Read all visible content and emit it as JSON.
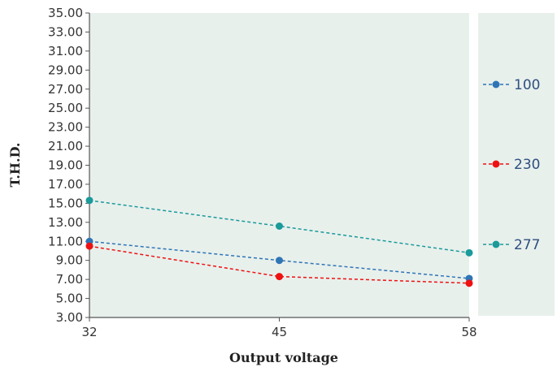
{
  "chart_data": {
    "type": "line",
    "title": "",
    "xlabel": "Output voltage",
    "ylabel": "T.H.D.",
    "categories": [
      "32",
      "45",
      "58"
    ],
    "ylim": [
      3.0,
      35.0
    ],
    "yticks": [
      "3.00",
      "5.00",
      "7.00",
      "9.00",
      "11.00",
      "13.00",
      "15.00",
      "17.00",
      "19.00",
      "21.00",
      "23.00",
      "25.00",
      "27.00",
      "29.00",
      "31.00",
      "33.00",
      "35.00"
    ],
    "series": [
      {
        "name": "100",
        "color": "#2e75b6",
        "values": [
          11.0,
          9.0,
          7.1
        ]
      },
      {
        "name": "230",
        "color": "#ee1111",
        "values": [
          10.5,
          7.3,
          6.6
        ]
      },
      {
        "name": "277",
        "color": "#1a9a9a",
        "values": [
          15.3,
          12.6,
          9.8
        ]
      }
    ],
    "grid": false,
    "legend_position": "right",
    "plot_background": "#e8f0ec"
  }
}
